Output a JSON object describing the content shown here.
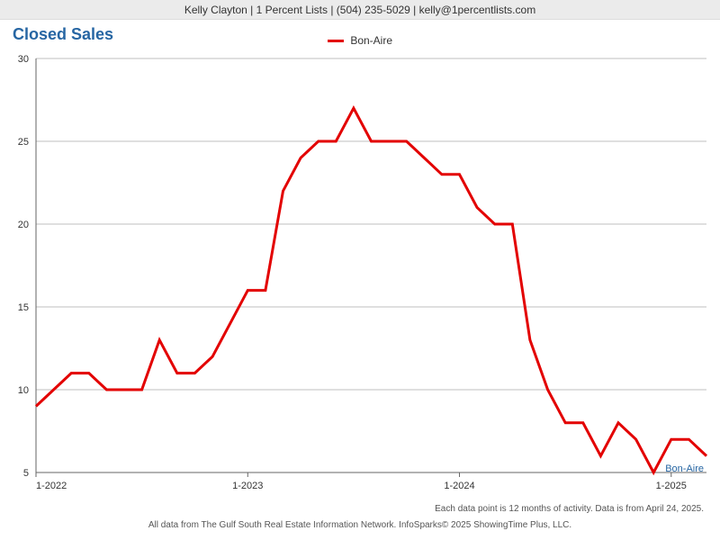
{
  "header": {
    "text": "Kelly Clayton | 1 Percent Lists | (504) 235-5029 | kelly@1percentlists.com"
  },
  "chart": {
    "type": "line",
    "title": "Closed Sales",
    "title_color": "#2766a3",
    "title_fontsize": 18,
    "background_color": "#ffffff",
    "grid_color": "#bfbfbf",
    "axis_color": "#666666",
    "label_fontsize": 11,
    "ylim": [
      5,
      30
    ],
    "ytick_step": 5,
    "yticks": [
      5,
      10,
      15,
      20,
      25,
      30
    ],
    "x_major_ticks": [
      0,
      12,
      24,
      36
    ],
    "x_major_labels": [
      "1-2022",
      "1-2023",
      "1-2024",
      "1-2025"
    ],
    "x_count": 39,
    "legend": {
      "label": "Bon-Aire",
      "color": "#e30000"
    },
    "series": [
      {
        "name": "Bon-Aire",
        "color": "#e30000",
        "line_width": 3,
        "values": [
          9,
          10,
          11,
          11,
          10,
          10,
          10,
          13,
          11,
          11,
          12,
          14,
          16,
          16,
          22,
          24,
          25,
          25,
          27,
          25,
          25,
          25,
          24,
          23,
          23,
          21,
          20,
          20,
          13,
          10,
          8,
          8,
          6,
          8,
          7,
          5,
          7,
          7,
          6
        ]
      }
    ],
    "series_side_label": "Bon-Aire",
    "series_side_label_color": "#2766a3"
  },
  "footnotes": {
    "right": "Each data point is 12 months of activity. Data is from April 24, 2025.",
    "center": "All data from The Gulf South Real Estate Information Network. InfoSparks© 2025 ShowingTime Plus, LLC."
  }
}
